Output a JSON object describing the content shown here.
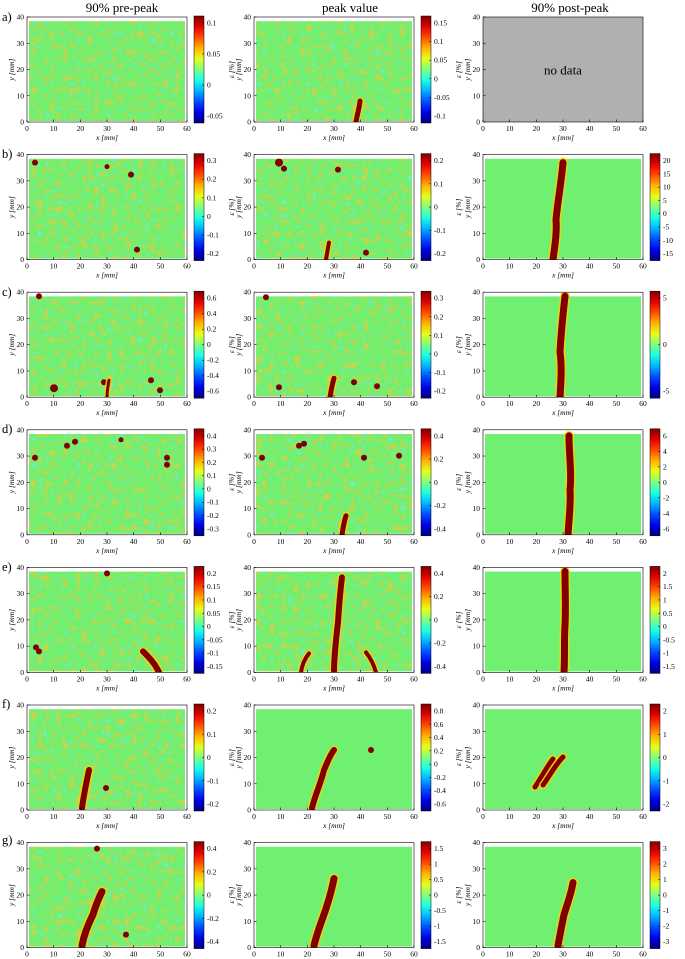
{
  "figure": {
    "column_titles": [
      "90% pre-peak",
      "peak value",
      "90% post-peak"
    ],
    "row_labels": [
      "a)",
      "b)",
      "c)",
      "d)",
      "e)",
      "f)",
      "g)"
    ],
    "no_data_text": "no data",
    "no_data_color": "#b0b0b0",
    "background_color": "#70f070",
    "strain_high_color": "#800000",
    "strain_low_color": "#00008f",
    "xlabel": "x [mm]",
    "ylabel": "y [mm]",
    "colorbar_label": "ε [%]",
    "x_ticks": [
      "0",
      "10",
      "20",
      "30",
      "40",
      "50",
      "60"
    ],
    "y_ticks": [
      "0",
      "10",
      "20",
      "30",
      "40"
    ],
    "rows": [
      [
        {
          "ticks": [
            "0.1",
            "0.05",
            "0",
            "-0.05"
          ],
          "noise": true
        },
        {
          "ticks": [
            "0.15",
            "0.1",
            "0.05",
            "0",
            "-0.05",
            "-0.1"
          ],
          "noise": true
        },
        {
          "no_data": true
        }
      ],
      [
        {
          "ticks": [
            "0.3",
            "0.2",
            "0.1",
            "0",
            "-0.1",
            "-0.2"
          ],
          "noise": true
        },
        {
          "ticks": [
            "0.2",
            "0.1",
            "0",
            "-0.1",
            "-0.2"
          ],
          "noise": true
        },
        {
          "ticks": [
            "20",
            "15",
            "10",
            "5",
            "0",
            "-5",
            "-10",
            "-15"
          ],
          "noise": false
        }
      ],
      [
        {
          "ticks": [
            "0.6",
            "0.4",
            "0.2",
            "0",
            "-0.2",
            "-0.4",
            "-0.6"
          ],
          "noise": true
        },
        {
          "ticks": [
            "0.3",
            "0.2",
            "0.1",
            "0",
            "-0.1",
            "-0.2"
          ],
          "noise": true
        },
        {
          "ticks": [
            "5",
            "0",
            "-5"
          ],
          "noise": false
        }
      ],
      [
        {
          "ticks": [
            "0.4",
            "0.3",
            "0.2",
            "0.1",
            "0",
            "-0.1",
            "-0.2",
            "-0.3"
          ],
          "noise": true
        },
        {
          "ticks": [
            "0.4",
            "0.2",
            "0",
            "-0.2",
            "-0.4"
          ],
          "noise": true
        },
        {
          "ticks": [
            "6",
            "4",
            "2",
            "0",
            "-2",
            "-4",
            "-6"
          ],
          "noise": false
        }
      ],
      [
        {
          "ticks": [
            "0.2",
            "0.15",
            "0.1",
            "0.05",
            "0",
            "-0.05",
            "-0.1",
            "-0.15"
          ],
          "noise": true
        },
        {
          "ticks": [
            "0.4",
            "0.2",
            "0",
            "-0.2",
            "-0.4"
          ],
          "noise": true
        },
        {
          "ticks": [
            "2",
            "1.5",
            "1",
            "0.5",
            "0",
            "-0.5",
            "-1",
            "-1.5"
          ],
          "noise": false
        }
      ],
      [
        {
          "ticks": [
            "0.2",
            "0.1",
            "0",
            "-0.1",
            "-0.2"
          ],
          "noise": true
        },
        {
          "ticks": [
            "0.8",
            "0.6",
            "0.4",
            "0.2",
            "0",
            "-0.2",
            "-0.4",
            "-0.6"
          ],
          "noise": false
        },
        {
          "ticks": [
            "2",
            "1",
            "0",
            "-1",
            "-2"
          ],
          "noise": false
        }
      ],
      [
        {
          "ticks": [
            "0.4",
            "0.2",
            "0",
            "-0.2",
            "-0.4"
          ],
          "noise": true
        },
        {
          "ticks": [
            "1.5",
            "1",
            "0.5",
            "0",
            "-0.5",
            "-1",
            "-1.5"
          ],
          "noise": false
        },
        {
          "ticks": [
            "3",
            "2",
            "1",
            "0",
            "-1",
            "-2",
            "-3"
          ],
          "noise": false
        }
      ]
    ]
  }
}
